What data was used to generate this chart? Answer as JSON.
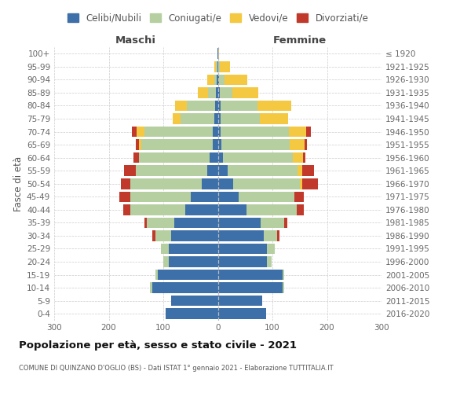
{
  "age_groups": [
    "0-4",
    "5-9",
    "10-14",
    "15-19",
    "20-24",
    "25-29",
    "30-34",
    "35-39",
    "40-44",
    "45-49",
    "50-54",
    "55-59",
    "60-64",
    "65-69",
    "70-74",
    "75-79",
    "80-84",
    "85-89",
    "90-94",
    "95-99",
    "100+"
  ],
  "birth_years": [
    "2016-2020",
    "2011-2015",
    "2006-2010",
    "2001-2005",
    "1996-2000",
    "1991-1995",
    "1986-1990",
    "1981-1985",
    "1976-1980",
    "1971-1975",
    "1966-1970",
    "1961-1965",
    "1956-1960",
    "1951-1955",
    "1946-1950",
    "1941-1945",
    "1936-1940",
    "1931-1935",
    "1926-1930",
    "1921-1925",
    "≤ 1920"
  ],
  "male_celibi": [
    95,
    85,
    120,
    110,
    90,
    90,
    85,
    80,
    60,
    50,
    30,
    20,
    15,
    10,
    10,
    6,
    5,
    3,
    2,
    1,
    1
  ],
  "male_coniugati": [
    0,
    0,
    5,
    5,
    10,
    15,
    30,
    50,
    100,
    110,
    130,
    130,
    130,
    130,
    125,
    63,
    52,
    15,
    5,
    2,
    0
  ],
  "male_vedovi": [
    0,
    0,
    0,
    0,
    0,
    0,
    0,
    0,
    0,
    0,
    0,
    0,
    0,
    5,
    14,
    14,
    22,
    18,
    12,
    4,
    0
  ],
  "male_divorziati": [
    0,
    0,
    0,
    0,
    0,
    0,
    5,
    5,
    14,
    20,
    18,
    22,
    10,
    5,
    8,
    0,
    0,
    0,
    0,
    0,
    0
  ],
  "female_nubili": [
    88,
    82,
    118,
    118,
    90,
    90,
    84,
    78,
    52,
    38,
    28,
    18,
    10,
    6,
    5,
    5,
    5,
    4,
    2,
    0,
    0
  ],
  "female_coniugate": [
    0,
    0,
    4,
    4,
    8,
    14,
    24,
    44,
    92,
    102,
    122,
    128,
    128,
    125,
    125,
    72,
    68,
    22,
    10,
    4,
    0
  ],
  "female_vedove": [
    0,
    0,
    0,
    0,
    0,
    0,
    0,
    0,
    0,
    0,
    5,
    8,
    18,
    28,
    32,
    52,
    62,
    48,
    42,
    18,
    2
  ],
  "female_divorziate": [
    0,
    0,
    0,
    0,
    0,
    0,
    5,
    5,
    14,
    18,
    28,
    22,
    5,
    5,
    8,
    0,
    0,
    0,
    0,
    0,
    0
  ],
  "color_celibi": "#3d6fa8",
  "color_coniugati": "#b5cfa0",
  "color_vedovi": "#f5c842",
  "color_divorziati": "#c0392b",
  "xlim": 300,
  "title": "Popolazione per età, sesso e stato civile - 2021",
  "subtitle": "COMUNE DI QUINZANO D'OGLIO (BS) - Dati ISTAT 1° gennaio 2021 - Elaborazione TUTTITALIA.IT",
  "ylabel_left": "Fasce di età",
  "legend_labels": [
    "Celibi/Nubili",
    "Coniugati/e",
    "Vedovi/e",
    "Divorziati/e"
  ],
  "maschi_label": "Maschi",
  "femmine_label": "Femmine"
}
